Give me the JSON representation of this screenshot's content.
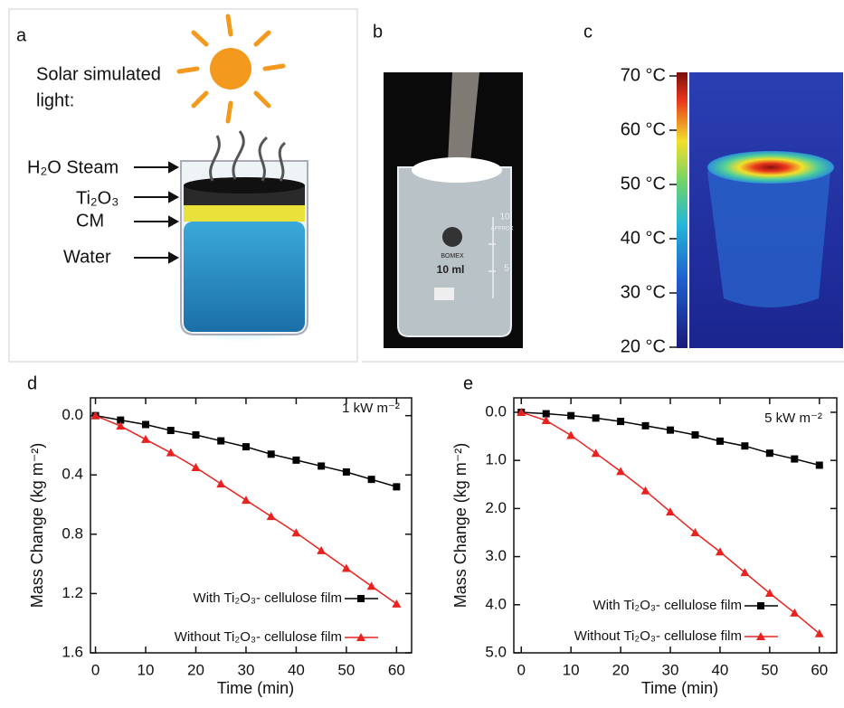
{
  "panel_a": {
    "label": "a",
    "light_label": [
      "Solar simulated",
      "light:"
    ],
    "layers": [
      "H₂O Steam",
      "Ti₂O₃",
      "CM",
      "Water"
    ]
  },
  "panel_b": {
    "label": "b",
    "beaker_texts": [
      "BOMEX",
      "10 ml",
      "10",
      "APPROX",
      "5"
    ]
  },
  "panel_c": {
    "label": "c",
    "colorbar": {
      "lim": [
        20,
        70
      ],
      "ticks": [
        {
          "value": 70,
          "label": "70 °C"
        },
        {
          "value": 60,
          "label": "60 °C"
        },
        {
          "value": 50,
          "label": "50 °C"
        },
        {
          "value": 40,
          "label": "40 °C"
        },
        {
          "value": 30,
          "label": "30 °C"
        },
        {
          "value": 20,
          "label": "20 °C"
        }
      ]
    }
  },
  "chart_data": [
    {
      "type": "line",
      "panel_label": "d",
      "annotation": "1 kW m⁻²",
      "x_label": "Time (min)",
      "y_label": "Mass Change (kg m⁻²)",
      "x": [
        0,
        5,
        10,
        15,
        20,
        25,
        30,
        35,
        40,
        45,
        50,
        55,
        60
      ],
      "xlim": [
        -1,
        63
      ],
      "xticks": [
        0,
        10,
        20,
        30,
        40,
        50,
        60
      ],
      "ylim": [
        1.6,
        -0.12
      ],
      "yticks": [
        {
          "value": 0,
          "label": "0.0"
        },
        0.4,
        0.8,
        1.2,
        1.6
      ],
      "series": [
        {
          "name": "With Ti₂O₃- cellulose film",
          "color": "#000000",
          "marker": "square",
          "values": [
            0,
            0.03,
            0.06,
            0.1,
            0.13,
            0.17,
            0.21,
            0.26,
            0.3,
            0.34,
            0.38,
            0.43,
            0.48
          ]
        },
        {
          "name": "Without Ti₂O₃- cellulose film",
          "color": "#e8231f",
          "marker": "triangle",
          "values": [
            0,
            0.07,
            0.16,
            0.25,
            0.35,
            0.46,
            0.57,
            0.68,
            0.79,
            0.91,
            1.03,
            1.15,
            1.27
          ]
        }
      ]
    },
    {
      "type": "line",
      "panel_label": "e",
      "annotation": "5 kW m⁻²",
      "x_label": "Time (min)",
      "y_label": "Mass Change (kg m⁻²)",
      "x": [
        0,
        5,
        10,
        15,
        20,
        25,
        30,
        35,
        40,
        45,
        50,
        55,
        60
      ],
      "xlim": [
        -1.5,
        63.5
      ],
      "xticks": [
        0,
        10,
        20,
        30,
        40,
        50,
        60
      ],
      "ylim": [
        5,
        -0.3
      ],
      "yticks": [
        {
          "value": 0,
          "label": "0.0"
        },
        {
          "value": 1,
          "label": "1.0"
        },
        {
          "value": 2,
          "label": "2.0"
        },
        {
          "value": 3,
          "label": "3.0"
        },
        {
          "value": 4,
          "label": "4.0"
        },
        {
          "value": 5,
          "label": "5.0"
        }
      ],
      "series": [
        {
          "name": "With Ti₂O₃- cellulose film",
          "color": "#000000",
          "marker": "square",
          "values": [
            0,
            0.03,
            0.07,
            0.12,
            0.19,
            0.28,
            0.37,
            0.47,
            0.6,
            0.7,
            0.85,
            0.97,
            1.1
          ]
        },
        {
          "name": "Without Ti₂O₃- cellulose film",
          "color": "#e8231f",
          "marker": "triangle",
          "values": [
            0,
            0.17,
            0.48,
            0.85,
            1.23,
            1.63,
            2.07,
            2.5,
            2.9,
            3.33,
            3.76,
            4.17,
            4.6
          ]
        }
      ]
    }
  ]
}
